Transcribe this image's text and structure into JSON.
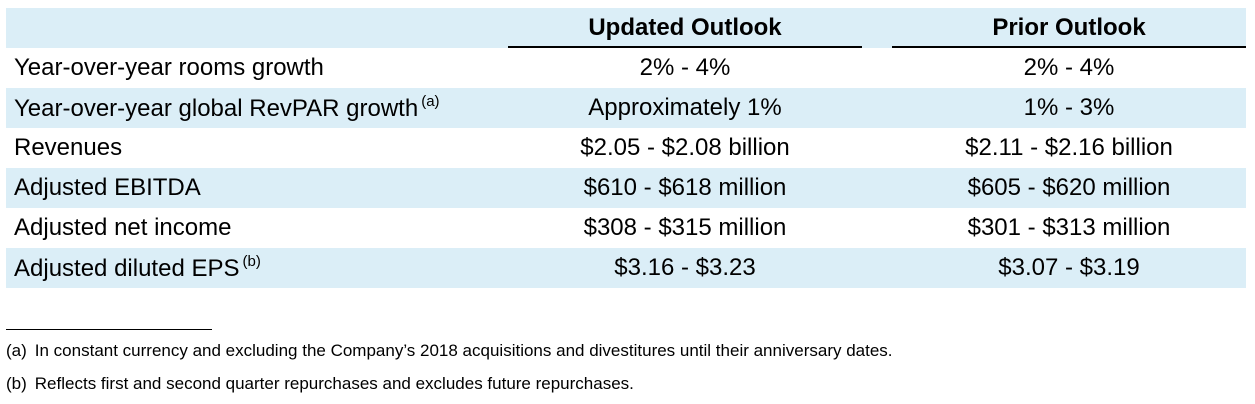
{
  "columns": {
    "updated": "Updated Outlook",
    "prior": "Prior Outlook"
  },
  "rows": [
    {
      "label": "Year-over-year rooms growth",
      "note": "",
      "updated": "2% - 4%",
      "prior": "2% - 4%"
    },
    {
      "label": "Year-over-year global RevPAR growth",
      "note": "(a)",
      "updated": "Approximately 1%",
      "prior": "1% - 3%"
    },
    {
      "label": "Revenues",
      "note": "",
      "updated": "$2.05 - $2.08 billion",
      "prior": "$2.11 - $2.16 billion"
    },
    {
      "label": "Adjusted EBITDA",
      "note": "",
      "updated": "$610 - $618 million",
      "prior": "$605 - $620 million"
    },
    {
      "label": "Adjusted net income",
      "note": "",
      "updated": "$308 - $315 million",
      "prior": "$301 - $313 million"
    },
    {
      "label": "Adjusted diluted EPS",
      "note": "(b)",
      "updated": "$3.16 - $3.23",
      "prior": "$3.07 - $3.19"
    }
  ],
  "footnotes": [
    {
      "marker": "(a)",
      "text": "In constant currency and excluding the Company’s 2018 acquisitions and divestitures until their anniversary dates."
    },
    {
      "marker": "(b)",
      "text": "Reflects first and second quarter repurchases and excludes future repurchases."
    }
  ],
  "colors": {
    "row_shade": "#dbeef7",
    "text": "#000000"
  }
}
